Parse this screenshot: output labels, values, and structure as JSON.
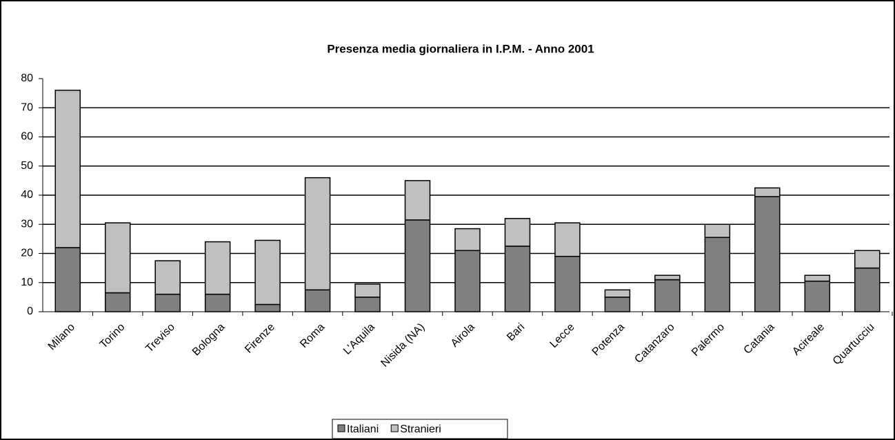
{
  "chart_data": {
    "type": "stacked_bar",
    "title": "Presenza media giornaliera in I.P.M. - Anno 2001",
    "categories": [
      "Milano",
      "Torino",
      "Treviso",
      "Bologna",
      "Firenze",
      "Roma",
      "L'Aquila",
      "Nisida (NA)",
      "Airola",
      "Bari",
      "Lecce",
      "Potenza",
      "Catanzaro",
      "Palermo",
      "Catania",
      "Acireale",
      "Quartucciu"
    ],
    "series": [
      {
        "name": "Italiani",
        "color": "#808080",
        "values": [
          22,
          6.5,
          6,
          6,
          2.5,
          7.5,
          5,
          31.5,
          21,
          22.5,
          19,
          5,
          11,
          25.5,
          39.5,
          10.5,
          15
        ]
      },
      {
        "name": "Stranieri",
        "color": "#c0c0c0",
        "values": [
          54,
          24,
          11.5,
          18,
          22,
          38.5,
          4.5,
          13.5,
          7.5,
          9.5,
          11.5,
          2.5,
          1.5,
          4.5,
          3,
          2,
          6
        ]
      }
    ],
    "ylim": [
      0,
      80
    ],
    "yticks": [
      0,
      10,
      20,
      30,
      40,
      50,
      60,
      70,
      80
    ],
    "grid": true,
    "legend": "bottom"
  }
}
